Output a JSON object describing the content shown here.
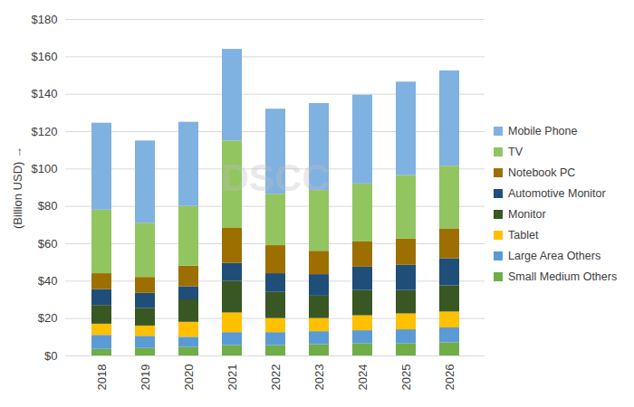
{
  "chart_data": {
    "type": "bar",
    "stacked": true,
    "grid": true,
    "legend": "right",
    "y_label": "(Billion USD)",
    "watermark": "DSCC",
    "categories": [
      "2018",
      "2019",
      "2020",
      "2021",
      "2022",
      "2023",
      "2024",
      "2025",
      "2026"
    ],
    "ylim": [
      0,
      180
    ],
    "yticks": [
      {
        "value": 0,
        "label": "$0"
      },
      {
        "value": 20,
        "label": "$20"
      },
      {
        "value": 40,
        "label": "$40"
      },
      {
        "value": 60,
        "label": "$60"
      },
      {
        "value": 80,
        "label": "$80"
      },
      {
        "value": 100,
        "label": "$100"
      },
      {
        "value": 120,
        "label": "$120"
      },
      {
        "value": 140,
        "label": "$140"
      },
      {
        "value": 160,
        "label": "$160"
      },
      {
        "value": 180,
        "label": "$180"
      }
    ],
    "series": [
      {
        "name": "Small Medium Others",
        "color": "#70ad47",
        "values": [
          3.5,
          4,
          4.5,
          5.5,
          5.5,
          6,
          6.5,
          6.5,
          7
        ]
      },
      {
        "name": "Large Area Others",
        "color": "#5b9bd5",
        "values": [
          7.5,
          6.5,
          5.5,
          7,
          7,
          7,
          7,
          7.5,
          8
        ]
      },
      {
        "name": "Tablet",
        "color": "#ffc000",
        "values": [
          6,
          5.5,
          8,
          10.5,
          7.5,
          7,
          8,
          8.5,
          8.5
        ]
      },
      {
        "name": "Monitor",
        "color": "#385723",
        "values": [
          10,
          9.5,
          12,
          17,
          14,
          12,
          13.5,
          12.5,
          14
        ]
      },
      {
        "name": "Automotive Monitor",
        "color": "#1f4e79",
        "values": [
          8.5,
          8,
          7,
          9.5,
          10,
          11.5,
          12.5,
          13.5,
          14.5
        ]
      },
      {
        "name": "Notebook PC",
        "color": "#9c6f00",
        "values": [
          8.5,
          8.5,
          11,
          19,
          15,
          12.5,
          13.5,
          14,
          16
        ]
      },
      {
        "name": "TV",
        "color": "#92c55f",
        "values": [
          34,
          29,
          32,
          46.5,
          27.5,
          32.5,
          31,
          34,
          33.5
        ]
      },
      {
        "name": "Mobile Phone",
        "color": "#7fb1e1",
        "values": [
          46.5,
          44,
          45,
          49,
          45.5,
          46.5,
          47.5,
          50,
          51
        ]
      }
    ]
  }
}
